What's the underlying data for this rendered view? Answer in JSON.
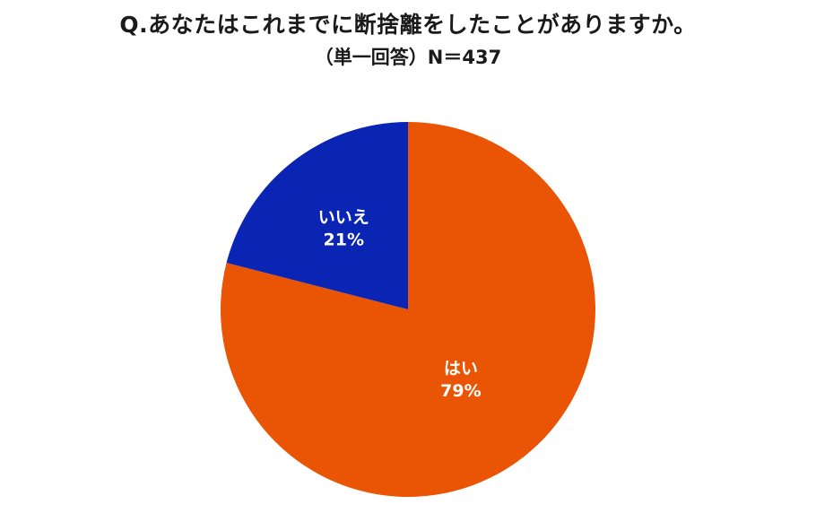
{
  "chart_data": {
    "type": "pie",
    "title": "Q.あなたはこれまでに断捨離をしたことがありますか。",
    "subtitle": "（単一回答）N＝437",
    "slices": [
      {
        "label": "はい",
        "value": 79,
        "value_label": "79%",
        "color": "#E95504"
      },
      {
        "label": "いいえ",
        "value": 21,
        "value_label": "21%",
        "color": "#0A24B3"
      }
    ],
    "start": "12 o'clock, clockwise",
    "legend": "none (labels inside slices)"
  }
}
